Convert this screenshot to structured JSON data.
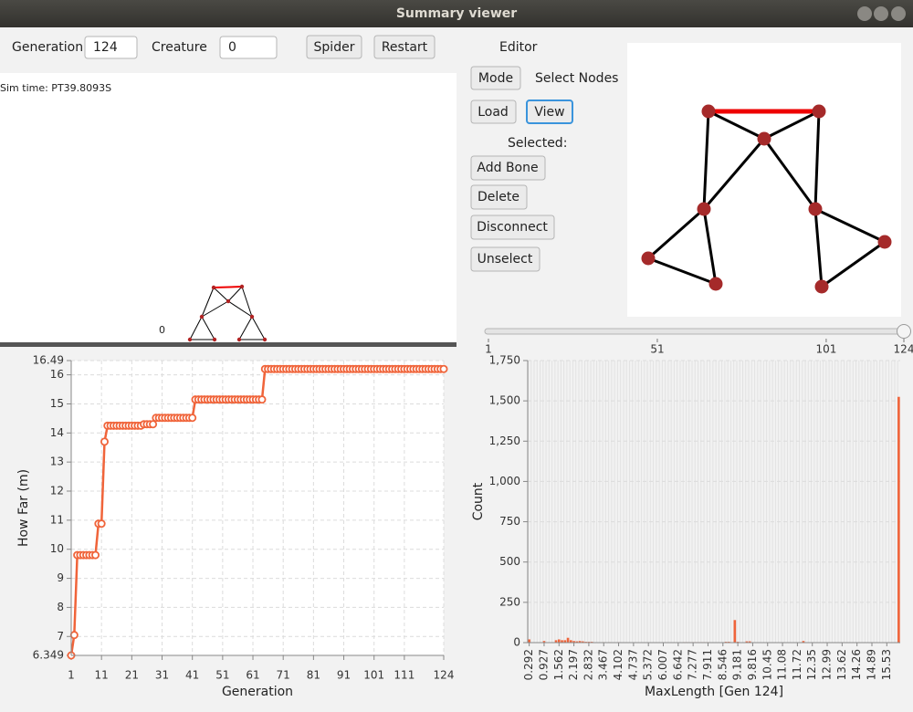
{
  "window": {
    "title": "Summary viewer"
  },
  "controls": {
    "generation_label": "Generation",
    "generation_value": "124",
    "creature_label": "Creature",
    "creature_value": "0",
    "spider": "Spider",
    "restart": "Restart"
  },
  "editor": {
    "title": "Editor",
    "mode": "Mode",
    "mode_value": "Select Nodes",
    "load": "Load",
    "view": "View",
    "selected": "Selected:",
    "add_bone": "Add Bone",
    "delete": "Delete",
    "disconnect": "Disconnect",
    "unselect": "Unselect"
  },
  "simulation": {
    "time": "Sim time: PT39.8093S",
    "marker": "0"
  },
  "slider": {
    "min": 1,
    "max": 124,
    "value": 124,
    "ticks": [
      1,
      51,
      101,
      124
    ]
  },
  "chart_data": [
    {
      "type": "line",
      "x_label": "Generation",
      "y_label": "How Far (m)",
      "color": "#f0643a",
      "grid": true,
      "markers": true,
      "xlim": [
        1,
        124
      ],
      "ylim": [
        6.349,
        16.49
      ],
      "xticks": [
        1,
        11,
        21,
        31,
        41,
        51,
        61,
        71,
        81,
        91,
        101,
        111,
        124
      ],
      "yticks": [
        6.349,
        7,
        8,
        9,
        10,
        11,
        12,
        13,
        14,
        15,
        16,
        16.49
      ],
      "x": [
        1,
        2,
        3,
        4,
        5,
        6,
        7,
        8,
        9,
        10,
        11,
        12,
        13,
        14,
        15,
        16,
        17,
        18,
        19,
        20,
        21,
        22,
        23,
        24,
        25,
        26,
        27,
        28,
        29,
        30,
        31,
        32,
        33,
        34,
        35,
        36,
        37,
        38,
        39,
        40,
        41,
        42,
        43,
        44,
        45,
        46,
        47,
        48,
        49,
        50,
        51,
        52,
        53,
        54,
        55,
        56,
        57,
        58,
        59,
        60,
        61,
        62,
        63,
        64,
        65,
        66,
        67,
        68,
        69,
        70,
        71,
        72,
        73,
        74,
        75,
        76,
        77,
        78,
        79,
        80,
        81,
        82,
        83,
        84,
        85,
        86,
        87,
        88,
        89,
        90,
        91,
        92,
        93,
        94,
        95,
        96,
        97,
        98,
        99,
        100,
        101,
        102,
        103,
        104,
        105,
        106,
        107,
        108,
        109,
        110,
        111,
        112,
        113,
        114,
        115,
        116,
        117,
        118,
        119,
        120,
        121,
        122,
        123,
        124
      ],
      "values": [
        6.349,
        7.05,
        9.8,
        9.8,
        9.8,
        9.8,
        9.8,
        9.8,
        9.8,
        10.88,
        10.88,
        13.7,
        14.25,
        14.25,
        14.25,
        14.25,
        14.25,
        14.25,
        14.25,
        14.25,
        14.25,
        14.25,
        14.25,
        14.25,
        14.3,
        14.3,
        14.3,
        14.3,
        14.52,
        14.52,
        14.52,
        14.52,
        14.52,
        14.52,
        14.52,
        14.52,
        14.52,
        14.52,
        14.52,
        14.52,
        14.52,
        15.15,
        15.15,
        15.15,
        15.15,
        15.15,
        15.15,
        15.15,
        15.15,
        15.15,
        15.15,
        15.15,
        15.15,
        15.15,
        15.15,
        15.15,
        15.15,
        15.15,
        15.15,
        15.15,
        15.15,
        15.15,
        15.15,
        15.15,
        16.2,
        16.2,
        16.2,
        16.2,
        16.2,
        16.2,
        16.2,
        16.2,
        16.2,
        16.2,
        16.2,
        16.2,
        16.2,
        16.2,
        16.2,
        16.2,
        16.2,
        16.2,
        16.2,
        16.2,
        16.2,
        16.2,
        16.2,
        16.2,
        16.2,
        16.2,
        16.2,
        16.2,
        16.2,
        16.2,
        16.2,
        16.2,
        16.2,
        16.2,
        16.2,
        16.2,
        16.2,
        16.2,
        16.2,
        16.2,
        16.2,
        16.2,
        16.2,
        16.2,
        16.2,
        16.2,
        16.2,
        16.2,
        16.2,
        16.2,
        16.2,
        16.2,
        16.2,
        16.2,
        16.2,
        16.2,
        16.2,
        16.2,
        16.2,
        16.2
      ]
    },
    {
      "type": "bar",
      "x_label": "MaxLength [Gen 124]",
      "y_label": "Count",
      "color": "#f0643a",
      "grid": true,
      "ylim": [
        0,
        1750
      ],
      "yticks": [
        0,
        250,
        500,
        750,
        {
          "value": 1000,
          "label": "1,000"
        },
        {
          "value": 1250,
          "label": "1,250"
        },
        {
          "value": 1500,
          "label": "1,500"
        },
        {
          "value": 1750,
          "label": "1,750"
        }
      ],
      "categories": [
        "0.292",
        null,
        null,
        null,
        null,
        "0.927",
        null,
        null,
        null,
        null,
        "1.562",
        null,
        null,
        null,
        null,
        "2.197",
        null,
        null,
        null,
        null,
        "2.832",
        null,
        null,
        null,
        null,
        "3.467",
        null,
        null,
        null,
        null,
        "4.102",
        null,
        null,
        null,
        null,
        "4.737",
        null,
        null,
        null,
        null,
        "5.372",
        null,
        null,
        null,
        null,
        "6.007",
        null,
        null,
        null,
        null,
        "6.642",
        null,
        null,
        null,
        null,
        "7.277",
        null,
        null,
        null,
        null,
        "7.911",
        null,
        null,
        null,
        null,
        "8.546",
        null,
        null,
        null,
        null,
        "9.181",
        null,
        null,
        null,
        null,
        "9.816",
        null,
        null,
        null,
        null,
        "10.45",
        null,
        null,
        null,
        null,
        "11.08",
        null,
        null,
        null,
        null,
        "11.72",
        null,
        null,
        null,
        null,
        "12.35",
        null,
        null,
        null,
        null,
        "12.99",
        null,
        null,
        null,
        null,
        "13.62",
        null,
        null,
        null,
        null,
        "14.26",
        null,
        null,
        null,
        null,
        "14.89",
        null,
        null,
        null,
        null,
        "15.53",
        null,
        null,
        null,
        null
      ],
      "values": [
        20,
        0,
        0,
        0,
        0,
        10,
        0,
        0,
        0,
        15,
        20,
        15,
        15,
        30,
        15,
        10,
        8,
        10,
        8,
        5,
        5,
        5,
        0,
        0,
        0,
        3,
        0,
        3,
        0,
        0,
        3,
        0,
        0,
        0,
        0,
        0,
        0,
        0,
        0,
        0,
        0,
        0,
        0,
        0,
        0,
        0,
        0,
        0,
        0,
        0,
        0,
        0,
        3,
        3,
        3,
        3,
        3,
        3,
        3,
        3,
        3,
        0,
        0,
        0,
        0,
        0,
        5,
        5,
        0,
        140,
        5,
        0,
        0,
        8,
        8,
        0,
        0,
        0,
        0,
        0,
        0,
        0,
        0,
        0,
        0,
        0,
        0,
        0,
        0,
        0,
        0,
        0,
        10,
        0,
        0,
        0,
        0,
        0,
        0,
        0,
        0,
        0,
        0,
        0,
        0,
        0,
        0,
        0,
        0,
        0,
        0,
        0,
        0,
        0,
        0,
        0,
        0,
        0,
        0,
        0,
        0,
        0,
        0,
        0,
        1525
      ]
    }
  ]
}
